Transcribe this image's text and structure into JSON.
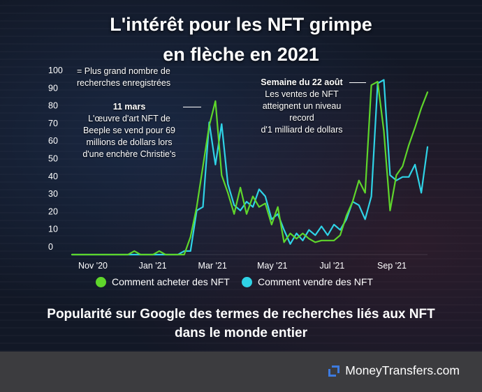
{
  "title": {
    "line1": "L'intérêt pour les NFT  grimpe",
    "line2": "en flèche en 2021"
  },
  "annotations": {
    "max_note_line1": "= Plus grand nombre de",
    "max_note_line2": "recherches enregistrées",
    "march": {
      "date": "11 mars",
      "line1": "L'œuvre d'art NFT  de",
      "line2": "Beeple se vend pour 69",
      "line3": "millions de dollars lors",
      "line4": "d'une enchère Christie's"
    },
    "august": {
      "date": "Semaine du 22 août",
      "line1": "Les ventes de NFT",
      "line2": "atteignent un niveau",
      "line3": "record",
      "line4": "d'1 milliard de dollars"
    }
  },
  "chart_data": {
    "type": "line",
    "ylim": [
      0,
      100
    ],
    "y_ticks": [
      "100",
      "90",
      "80",
      "70",
      "60",
      "50",
      "40",
      "30",
      "20",
      "10",
      "0"
    ],
    "x_ticks": [
      "Nov '20",
      "Jan '21",
      "Mar '21",
      "May '21",
      "Jul '21",
      "Sep '21"
    ],
    "colors": {
      "buy": "#5fd62b",
      "sell": "#2fd3e6"
    },
    "series": [
      {
        "name": "Comment acheter des NFT",
        "values": [
          0,
          0,
          0,
          0,
          0,
          0,
          0,
          0,
          0,
          0,
          2,
          0,
          0,
          0,
          2,
          0,
          0,
          0,
          0,
          10,
          27,
          50,
          73,
          87,
          45,
          35,
          23,
          38,
          23,
          33,
          27,
          29,
          17,
          27,
          7,
          12,
          9,
          12,
          9,
          7,
          8,
          8,
          8,
          11,
          22,
          30,
          42,
          35,
          96,
          98,
          70,
          25,
          45,
          50,
          62,
          72,
          83,
          92
        ]
      },
      {
        "name": "Comment vendre des NFT",
        "values": [
          0,
          0,
          0,
          0,
          0,
          0,
          0,
          0,
          0,
          0,
          0,
          0,
          0,
          0,
          0,
          0,
          0,
          0,
          2,
          2,
          25,
          27,
          75,
          51,
          74,
          40,
          28,
          25,
          30,
          27,
          37,
          33,
          20,
          23,
          14,
          6,
          12,
          8,
          14,
          11,
          16,
          11,
          17,
          14,
          20,
          30,
          28,
          20,
          33,
          97,
          99,
          45,
          42,
          44,
          44,
          51,
          35,
          61
        ]
      }
    ]
  },
  "legend": {
    "buy_label": "Comment acheter des NFT",
    "sell_label": "Comment vendre des NFT"
  },
  "subtitle": {
    "line1": "Popularité sur Google des termes de recherches liés aux NFT",
    "line2": "dans le monde entier"
  },
  "footer": {
    "brand": "MoneyTransfers.com"
  }
}
